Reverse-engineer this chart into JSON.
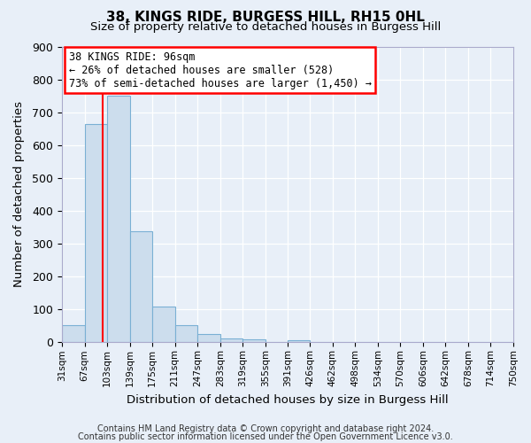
{
  "title": "38, KINGS RIDE, BURGESS HILL, RH15 0HL",
  "subtitle": "Size of property relative to detached houses in Burgess Hill",
  "xlabel": "Distribution of detached houses by size in Burgess Hill",
  "ylabel": "Number of detached properties",
  "bin_edges": [
    31,
    67,
    103,
    139,
    175,
    211,
    247,
    283,
    319,
    355,
    391,
    426,
    462,
    498,
    534,
    570,
    606,
    642,
    678,
    714,
    750
  ],
  "bar_heights": [
    52,
    665,
    750,
    338,
    108,
    51,
    25,
    13,
    8,
    0,
    6,
    0,
    0,
    0,
    0,
    0,
    0,
    0,
    0,
    0
  ],
  "bar_color": "#ccdded",
  "bar_edgecolor": "#7ab0d4",
  "background_color": "#e8eff8",
  "grid_color": "#ffffff",
  "ylim": [
    0,
    900
  ],
  "yticks": [
    0,
    100,
    200,
    300,
    400,
    500,
    600,
    700,
    800,
    900
  ],
  "red_line_x": 96,
  "annotation_title": "38 KINGS RIDE: 96sqm",
  "annotation_line1": "← 26% of detached houses are smaller (528)",
  "annotation_line2": "73% of semi-detached houses are larger (1,450) →",
  "footer1": "Contains HM Land Registry data © Crown copyright and database right 2024.",
  "footer2": "Contains public sector information licensed under the Open Government Licence v3.0.",
  "tick_labels": [
    "31sqm",
    "67sqm",
    "103sqm",
    "139sqm",
    "175sqm",
    "211sqm",
    "247sqm",
    "283sqm",
    "319sqm",
    "355sqm",
    "391sqm",
    "426sqm",
    "462sqm",
    "498sqm",
    "534sqm",
    "570sqm",
    "606sqm",
    "642sqm",
    "678sqm",
    "714sqm",
    "750sqm"
  ]
}
